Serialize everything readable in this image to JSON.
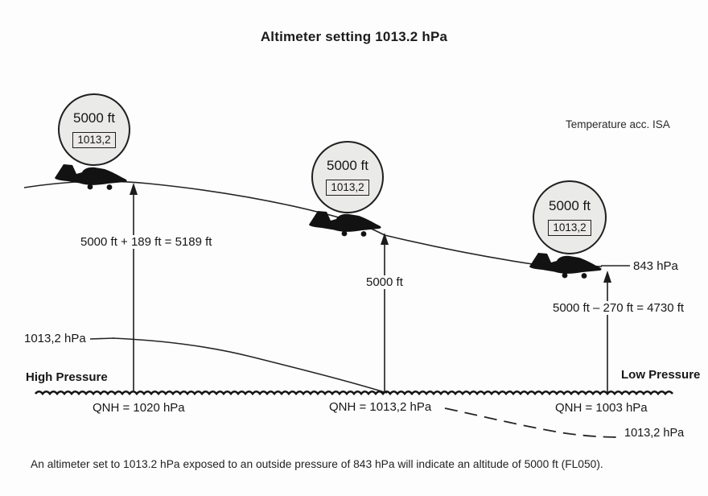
{
  "title": "Altimeter setting 1013.2 hPa",
  "note": "Temperature acc. ISA",
  "balloons": [
    {
      "altitude": "5000 ft",
      "setting": "1013,2"
    },
    {
      "altitude": "5000 ft",
      "setting": "1013,2"
    },
    {
      "altitude": "5000 ft",
      "setting": "1013,2"
    }
  ],
  "labels": {
    "eq_high": "5000 ft + 189 ft = 5189 ft",
    "mid_altitude": "5000 ft",
    "eq_low": "5000 ft – 270 ft = 4730 ft",
    "pressure_843": "843 hPa",
    "isobar_left": "1013,2 hPa",
    "isobar_bottom": "1013,2 hPa",
    "high_pressure": "High Pressure",
    "low_pressure": "Low Pressure",
    "qnh_left": "QNH = 1020 hPa",
    "qnh_mid": "QNH = 1013,2 hPa",
    "qnh_right": "QNH = 1003 hPa"
  },
  "caption": "An altimeter set to 1013.2 hPa exposed to an outside pressure of 843 hPa will indicate an altitude of 5000 ft (FL050).",
  "colors": {
    "ink": "#1c1c1c",
    "balloon_fill": "#eaeae8",
    "background": "#fdfdfd"
  }
}
